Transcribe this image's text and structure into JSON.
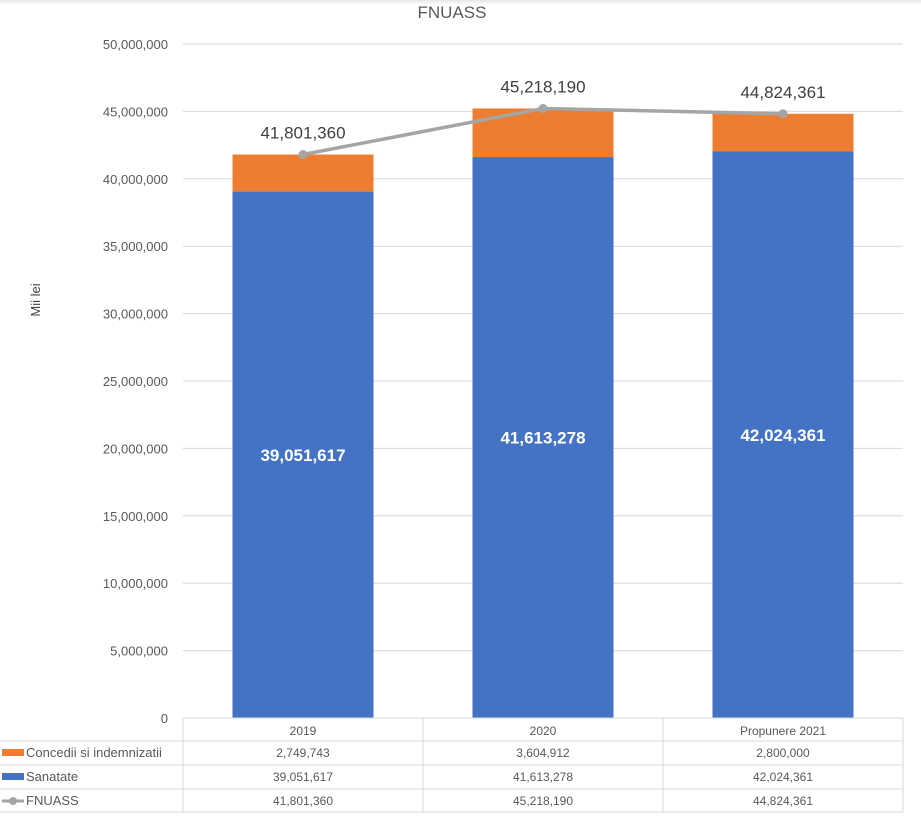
{
  "chart_data": {
    "type": "bar",
    "stacked": true,
    "title": "FNUASS",
    "ylabel": "Mii lei",
    "xlabel": "",
    "ylim": [
      0,
      50000000
    ],
    "yticks": [
      0,
      5000000,
      10000000,
      15000000,
      20000000,
      25000000,
      30000000,
      35000000,
      40000000,
      45000000,
      50000000
    ],
    "ytick_labels": [
      "0",
      "5,000,000",
      "10,000,000",
      "15,000,000",
      "20,000,000",
      "25,000,000",
      "30,000,000",
      "35,000,000",
      "40,000,000",
      "45,000,000",
      "50,000,000"
    ],
    "grid": true,
    "categories": [
      "2019",
      "2020",
      "Propunere 2021"
    ],
    "series": [
      {
        "name": "Concedii si indemnizatii",
        "kind": "bar",
        "color": "#ED7D31",
        "values": [
          2749743,
          3604912,
          2800000
        ],
        "labels": [
          "2,749,743",
          "3,604,912",
          "2,800,000"
        ]
      },
      {
        "name": "Sanatate",
        "kind": "bar",
        "color": "#4472C4",
        "values": [
          39051617,
          41613278,
          42024361
        ],
        "labels": [
          "39,051,617",
          "41,613,278",
          "42,024,361"
        ]
      },
      {
        "name": "FNUASS",
        "kind": "line",
        "color": "#A5A5A5",
        "values": [
          41801360,
          45218190,
          44824361
        ],
        "labels": [
          "41,801,360",
          "45,218,190",
          "44,824,361"
        ]
      }
    ],
    "legend": "data-table-left"
  }
}
